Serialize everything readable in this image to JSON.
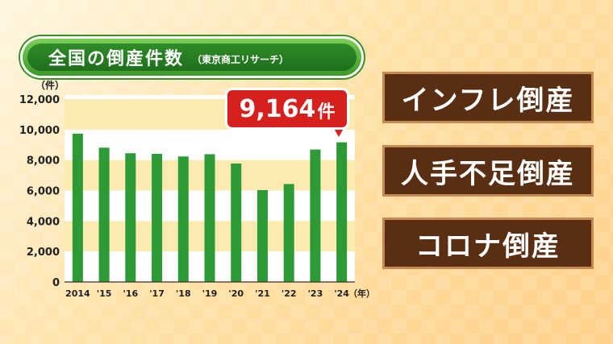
{
  "title": "全国の倒産件数",
  "source": "（東京商工リサーチ）",
  "callout": {
    "value": "9,164",
    "unit": "件"
  },
  "tags": [
    "インフレ倒産",
    "人手不足倒産",
    "コロナ倒産"
  ],
  "colors": {
    "bar": "#2e9a35",
    "band": "#fcebb0",
    "callout": "#d7201e",
    "tag_bg": "#5a2e12",
    "title_bg": "#2f8c28"
  },
  "chart_data": {
    "type": "bar",
    "categories": [
      "2014",
      "'15",
      "'16",
      "'17",
      "'18",
      "'19",
      "'20",
      "'21",
      "'22",
      "'23",
      "'24"
    ],
    "values": [
      9731,
      8812,
      8446,
      8405,
      8235,
      8383,
      7773,
      6030,
      6428,
      8690,
      9164
    ],
    "ylim": [
      0,
      12000
    ],
    "yticks": [
      "0",
      "2,000",
      "4,000",
      "6,000",
      "8,000",
      "10,000",
      "12,000"
    ],
    "ylabel": "（件）",
    "xlabel": "（年）",
    "grid": "horizontal bands"
  }
}
